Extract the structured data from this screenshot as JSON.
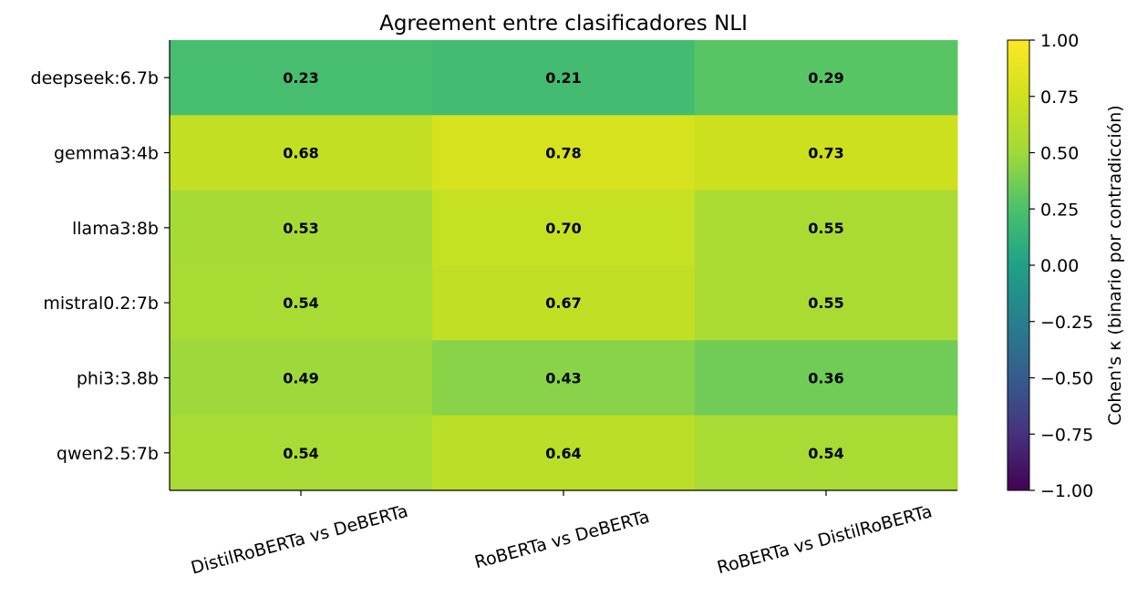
{
  "chart_data": {
    "type": "heatmap",
    "title": "Agreement entre clasificadores NLI",
    "xlabel": "",
    "ylabel": "",
    "categories_x": [
      "DistilRoBERTa vs DeBERTa",
      "RoBERTa vs DeBERTa",
      "RoBERTa vs DistilRoBERTa"
    ],
    "categories_y": [
      "deepseek:6.7b",
      "gemma3:4b",
      "llama3:8b",
      "mistral0.2:7b",
      "phi3:3.8b",
      "qwen2.5:7b"
    ],
    "values": [
      [
        0.23,
        0.21,
        0.29
      ],
      [
        0.68,
        0.78,
        0.73
      ],
      [
        0.53,
        0.7,
        0.55
      ],
      [
        0.54,
        0.67,
        0.55
      ],
      [
        0.49,
        0.43,
        0.36
      ],
      [
        0.54,
        0.64,
        0.54
      ]
    ],
    "value_labels": [
      [
        "0.23",
        "0.21",
        "0.29"
      ],
      [
        "0.68",
        "0.78",
        "0.73"
      ],
      [
        "0.53",
        "0.70",
        "0.55"
      ],
      [
        "0.54",
        "0.67",
        "0.55"
      ],
      [
        "0.49",
        "0.43",
        "0.36"
      ],
      [
        "0.54",
        "0.64",
        "0.54"
      ]
    ],
    "colorbar": {
      "label": "Cohen's κ (binario por contradicción)",
      "range": [
        -1.0,
        1.0
      ],
      "ticks": [
        1.0,
        0.75,
        0.5,
        0.25,
        0.0,
        -0.25,
        -0.5,
        -0.75,
        -1.0
      ],
      "tick_labels": [
        "1.00",
        "0.75",
        "0.50",
        "0.25",
        "0.00",
        "−0.25",
        "−0.50",
        "−0.75",
        "−1.00"
      ],
      "colormap": "viridis"
    },
    "grid": false
  }
}
